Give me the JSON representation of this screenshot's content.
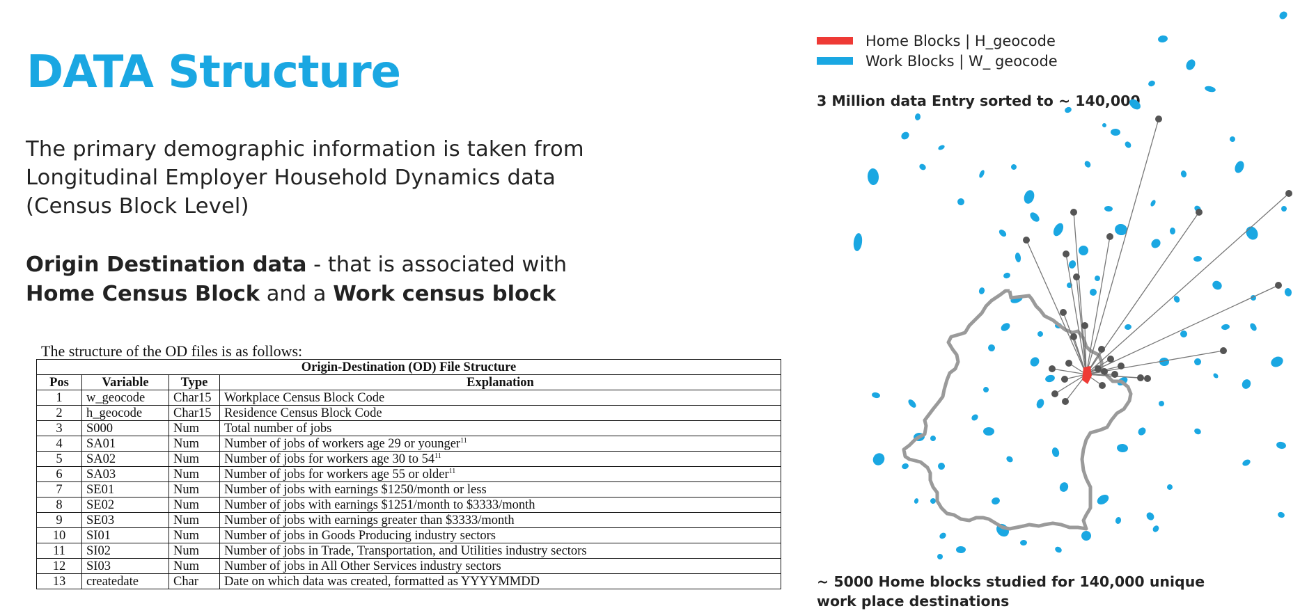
{
  "heading": {
    "title": "DATA Structure"
  },
  "intro": {
    "lines": [
      "The primary demographic information is taken from",
      "Longitudinal Employer Household Dynamics data",
      "(Census Block Level)"
    ]
  },
  "od_description": {
    "bold1": "Origin Destination  data",
    "text1": " - that is associated with",
    "bold2": "Home Census Block",
    "text2": " and a ",
    "bold3": "Work census block"
  },
  "table": {
    "intro": "The structure of the OD files is as follows:",
    "caption": "Origin-Destination (OD) File Structure",
    "headers": [
      "Pos",
      "Variable",
      "Type",
      "Explanation"
    ],
    "rows": [
      {
        "pos": "1",
        "variable": "w_geocode",
        "type": "Char15",
        "explanation": "Workplace Census Block Code",
        "sup": ""
      },
      {
        "pos": "2",
        "variable": "h_geocode",
        "type": "Char15",
        "explanation": "Residence Census Block Code",
        "sup": ""
      },
      {
        "pos": "3",
        "variable": "S000",
        "type": "Num",
        "explanation": "Total number of jobs",
        "sup": ""
      },
      {
        "pos": "4",
        "variable": "SA01",
        "type": "Num",
        "explanation": "Number of jobs of workers age 29 or younger",
        "sup": "11"
      },
      {
        "pos": "5",
        "variable": "SA02",
        "type": "Num",
        "explanation": "Number of jobs for workers age 30 to 54",
        "sup": "11"
      },
      {
        "pos": "6",
        "variable": "SA03",
        "type": "Num",
        "explanation": "Number of jobs for workers age 55 or older",
        "sup": "11"
      },
      {
        "pos": "7",
        "variable": "SE01",
        "type": "Num",
        "explanation": "Number of jobs with earnings $1250/month or less",
        "sup": ""
      },
      {
        "pos": "8",
        "variable": "SE02",
        "type": "Num",
        "explanation": "Number of jobs with earnings $1251/month to $3333/month",
        "sup": ""
      },
      {
        "pos": "9",
        "variable": "SE03",
        "type": "Num",
        "explanation": "Number of jobs with earnings greater than $3333/month",
        "sup": ""
      },
      {
        "pos": "10",
        "variable": "SI01",
        "type": "Num",
        "explanation": "Number of jobs in Goods Producing industry sectors",
        "sup": ""
      },
      {
        "pos": "11",
        "variable": "SI02",
        "type": "Num",
        "explanation": "Number of jobs in Trade, Transportation, and Utilities industry sectors",
        "sup": ""
      },
      {
        "pos": "12",
        "variable": "SI03",
        "type": "Num",
        "explanation": "Number of jobs in All Other Services industry sectors",
        "sup": ""
      },
      {
        "pos": "13",
        "variable": "createdate",
        "type": "Char",
        "explanation": "Date on which data was created, formatted as YYYYMMDD",
        "sup": ""
      }
    ]
  },
  "legend": {
    "items": [
      {
        "label": "Home Blocks |  H_geocode",
        "color": "#ee3a35"
      },
      {
        "label": "Work Blocks   |  W_ geocode",
        "color": "#1aa7e2"
      }
    ]
  },
  "map": {
    "note_top": "3 Million data Entry  sorted to ~ 140,000",
    "note_bottom": "~ 5000 Home blocks studied  for 140,000 unique work place destinations",
    "boundary_color": "#9a9a9a",
    "line_color": "#777777",
    "point_color": "#555555"
  }
}
